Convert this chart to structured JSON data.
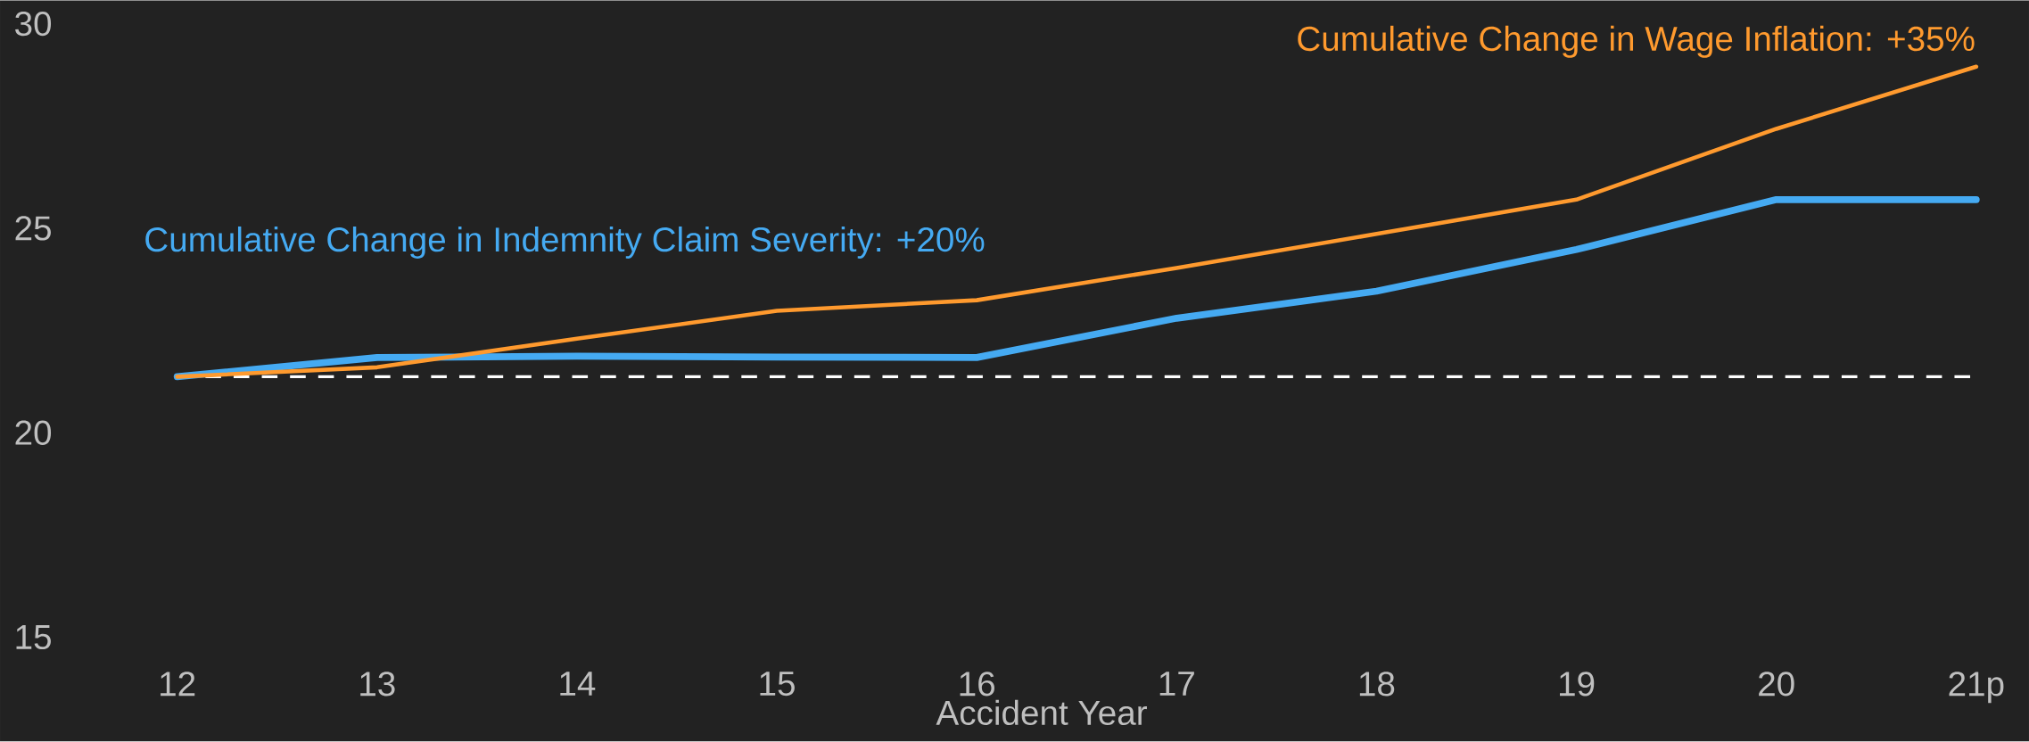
{
  "chart_data": {
    "type": "line",
    "xlabel": "Accident Year",
    "categories": [
      "12",
      "13",
      "14",
      "15",
      "16",
      "17",
      "18",
      "19",
      "20",
      "21p"
    ],
    "series": [
      {
        "name": "Cumulative Change in Indemnity Claim Severity:  +20%",
        "color": "#45aaf2",
        "values": [
          21.37,
          21.84,
          21.87,
          21.85,
          21.84,
          22.8,
          23.46,
          24.48,
          25.7,
          25.7
        ]
      },
      {
        "name": "Cumulative Change in Wage Inflation:  +35%",
        "color": "#ff9a2e",
        "values": [
          21.37,
          21.6,
          22.3,
          22.98,
          23.24,
          24.03,
          24.86,
          25.7,
          27.43,
          28.95
        ]
      }
    ],
    "ylim": [
      15,
      30
    ],
    "yticks": [
      15,
      20,
      25,
      30
    ],
    "ref_lines": [
      {
        "axis": "y",
        "value": 21.37,
        "color": "#ffffff",
        "line_style": "dashed"
      }
    ]
  }
}
